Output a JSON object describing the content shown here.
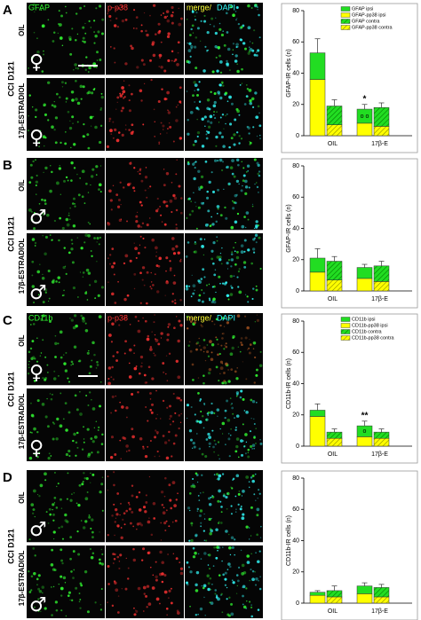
{
  "panels": [
    {
      "letter": "A",
      "group": "CCI D121",
      "rows": [
        "OIL",
        "17β-ESTRADIOL"
      ],
      "sex": "♀",
      "stains": {
        "marker": "GFAP",
        "p38": "p-p38",
        "merge": "merge/",
        "dapi": "DAPI"
      }
    },
    {
      "letter": "B",
      "group": "CCI D121",
      "rows": [
        "OIL",
        "17β-ESTRADIOL"
      ],
      "sex": "♂"
    },
    {
      "letter": "C",
      "group": "CCI D121",
      "rows": [
        "OIL",
        "17β-ESTRADIOL"
      ],
      "sex": "♀",
      "stains": {
        "marker": "CD11b",
        "p38": "p-p38",
        "merge": "merge/",
        "dapi": "DAPI"
      }
    },
    {
      "letter": "D",
      "group": "CCI D121",
      "rows": [
        "OIL",
        "17β-ESTRADIOL"
      ],
      "sex": "♂"
    }
  ],
  "chart_data": [
    {
      "type": "bar",
      "y_label": "GFAP-IR cells (n)",
      "categories": [
        "OIL",
        "17β-E"
      ],
      "ylim": [
        0,
        80
      ],
      "yticks": [
        0,
        20,
        40,
        60,
        80
      ],
      "series": [
        {
          "name": "GFAP ipsi",
          "color": "#22dd22",
          "hatch": false,
          "values": [
            17,
            9
          ],
          "errors": [
            9,
            3
          ]
        },
        {
          "name": "GFAP-pp38 ipsi",
          "color": "#ffff00",
          "hatch": false,
          "values": [
            36,
            8
          ],
          "errors": [
            8,
            null
          ]
        },
        {
          "name": "GFAP contra",
          "color": "#22dd22",
          "hatch": true,
          "values": [
            12,
            12
          ],
          "errors": [
            4,
            3
          ]
        },
        {
          "name": "GFAP-pp38 contra",
          "color": "#ffff00",
          "hatch": true,
          "values": [
            7,
            6
          ],
          "errors": [
            null,
            null
          ]
        }
      ],
      "annotations": [
        "*",
        "o o"
      ]
    },
    {
      "type": "bar",
      "y_label": "GFAP-IR cells (n)",
      "categories": [
        "OIL",
        "17β-E"
      ],
      "ylim": [
        0,
        80
      ],
      "yticks": [
        0,
        20,
        40,
        60,
        80
      ],
      "series": [
        {
          "color": "#22dd22",
          "hatch": false,
          "values": [
            9,
            7
          ],
          "errors": [
            6,
            2
          ]
        },
        {
          "color": "#ffff00",
          "hatch": false,
          "values": [
            12,
            8
          ],
          "errors": [
            null,
            null
          ]
        },
        {
          "color": "#22dd22",
          "hatch": true,
          "values": [
            12,
            10
          ],
          "errors": [
            3,
            3
          ]
        },
        {
          "color": "#ffff00",
          "hatch": true,
          "values": [
            7,
            6
          ],
          "errors": [
            null,
            null
          ]
        }
      ]
    },
    {
      "type": "bar",
      "y_label": "CD11b-IR cells (n)",
      "categories": [
        "OIL",
        "17β-E"
      ],
      "ylim": [
        0,
        80
      ],
      "yticks": [
        0,
        20,
        40,
        60,
        80
      ],
      "series": [
        {
          "name": "CD11b ipsi",
          "color": "#22dd22",
          "hatch": false,
          "values": [
            4,
            7
          ],
          "errors": [
            4,
            3
          ]
        },
        {
          "name": "CD11b-pp38 ipsi",
          "color": "#ffff00",
          "hatch": false,
          "values": [
            19,
            6
          ],
          "errors": [
            null,
            null
          ]
        },
        {
          "name": "CD11b contra",
          "color": "#22dd22",
          "hatch": true,
          "values": [
            4,
            4
          ],
          "errors": [
            2,
            2
          ]
        },
        {
          "name": "CD11b-pp38 contra",
          "color": "#ffff00",
          "hatch": true,
          "values": [
            5,
            5
          ],
          "errors": [
            null,
            null
          ]
        }
      ],
      "annotations": [
        "**",
        "o"
      ]
    },
    {
      "type": "bar",
      "y_label": "CD11b-IR cells (n)",
      "categories": [
        "OIL",
        "17β-E"
      ],
      "ylim": [
        0,
        80
      ],
      "yticks": [
        0,
        20,
        40,
        60,
        80
      ],
      "series": [
        {
          "color": "#22dd22",
          "hatch": false,
          "values": [
            2,
            5
          ],
          "errors": [
            1,
            2
          ]
        },
        {
          "color": "#ffff00",
          "hatch": false,
          "values": [
            5,
            6
          ],
          "errors": [
            null,
            null
          ]
        },
        {
          "color": "#22dd22",
          "hatch": true,
          "values": [
            4,
            6
          ],
          "errors": [
            3,
            2
          ]
        },
        {
          "color": "#ffff00",
          "hatch": true,
          "values": [
            4,
            4
          ],
          "errors": [
            null,
            null
          ]
        }
      ]
    }
  ]
}
